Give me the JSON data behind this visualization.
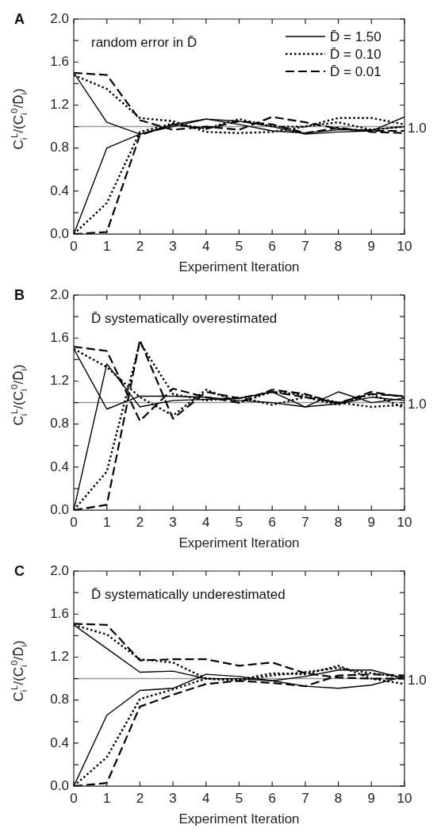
{
  "chart_data": [
    {
      "type": "line",
      "title": "A",
      "xlabel": "Experiment Iteration",
      "ylabel": "C$_{i}$$^{L}$/(C$_{i}$$^{0}$/D̄$_{i}$)",
      "annotations": [
        "random error in D̄"
      ],
      "legend": "top right",
      "marker": "none",
      "x": [
        0,
        1,
        2,
        3,
        4,
        5,
        6,
        7,
        8,
        9,
        10
      ],
      "xlim": [
        0,
        10
      ],
      "xticks": [
        0,
        1,
        2,
        3,
        4,
        5,
        6,
        7,
        8,
        9,
        10
      ],
      "ylim": [
        0,
        2
      ],
      "yticks": [
        {
          "value": 0,
          "label": "0.0"
        },
        {
          "value": 0.2,
          "label": null
        },
        {
          "value": 0.4,
          "label": "0.4"
        },
        {
          "value": 0.6,
          "label": null
        },
        {
          "value": 0.8,
          "label": "0.8"
        },
        {
          "value": 1,
          "label": null
        },
        {
          "value": 1.2,
          "label": "1.2"
        },
        {
          "value": 1.4,
          "label": null
        },
        {
          "value": 1.6,
          "label": "1.6"
        },
        {
          "value": 1.8,
          "label": null
        },
        {
          "value": 2,
          "label": "2.0"
        }
      ],
      "ref_lines": [
        {
          "axis": "y",
          "value": 1,
          "label": "1.0",
          "color": "#999999"
        }
      ],
      "series": [
        {
          "name": "D̄ = 1.50",
          "color": "#000000",
          "line_style": "solid",
          "values": [
            1.5,
            1.04,
            0.93,
            1.0,
            1.07,
            1.05,
            1.0,
            0.93,
            0.95,
            0.96,
            1.09
          ]
        },
        {
          "color": "#000000",
          "line_style": "solid",
          "values": [
            0,
            0.8,
            0.93,
            1.02,
            1.07,
            1.02,
            0.96,
            0.94,
            0.97,
            0.97,
            1.0
          ]
        },
        {
          "name": "D̄ = 0.10",
          "color": "#000000",
          "line_style": "dotted",
          "values": [
            1.48,
            1.35,
            1.08,
            1.05,
            0.95,
            0.94,
            0.95,
            1.0,
            1.08,
            1.08,
            1.02
          ]
        },
        {
          "color": "#000000",
          "line_style": "dotted",
          "values": [
            0,
            0.29,
            0.95,
            1.03,
            0.98,
            1.07,
            1.0,
            1.0,
            1.04,
            0.97,
            1.0
          ]
        },
        {
          "name": "D̄ = 0.01",
          "color": "#000000",
          "line_style": "dashed",
          "values": [
            1.5,
            1.48,
            1.06,
            0.97,
            1.0,
            0.97,
            1.09,
            1.04,
            0.98,
            0.96,
            0.96
          ]
        },
        {
          "color": "#000000",
          "line_style": "dashed",
          "values": [
            0,
            0.02,
            0.92,
            1.02,
            0.98,
            1.05,
            1.02,
            0.94,
            0.99,
            0.95,
            0.94
          ]
        }
      ]
    },
    {
      "type": "line",
      "title": "B",
      "xlabel": "Experiment Iteration",
      "ylabel": "C$_{i}$$^{L}$/(C$_{i}$$^{0}$/D̄$_{i}$)",
      "annotations": [
        "D̄ systematically overestimated"
      ],
      "marker": "none",
      "x": [
        0,
        1,
        2,
        3,
        4,
        5,
        6,
        7,
        8,
        9,
        10
      ],
      "xlim": [
        0,
        10
      ],
      "xticks": [
        0,
        1,
        2,
        3,
        4,
        5,
        6,
        7,
        8,
        9,
        10
      ],
      "ylim": [
        0,
        2
      ],
      "yticks": [
        {
          "value": 0,
          "label": "0.0"
        },
        {
          "value": 0.2,
          "label": null
        },
        {
          "value": 0.4,
          "label": "0.4"
        },
        {
          "value": 0.6,
          "label": null
        },
        {
          "value": 0.8,
          "label": "0.8"
        },
        {
          "value": 1,
          "label": null
        },
        {
          "value": 1.2,
          "label": "1.2"
        },
        {
          "value": 1.4,
          "label": null
        },
        {
          "value": 1.6,
          "label": "1.6"
        },
        {
          "value": 1.8,
          "label": null
        },
        {
          "value": 2,
          "label": "2.0"
        }
      ],
      "ref_lines": [
        {
          "axis": "y",
          "value": 1,
          "label": "1.0",
          "color": "#999999"
        }
      ],
      "series": [
        {
          "color": "#000000",
          "line_style": "solid",
          "values": [
            1.5,
            0.94,
            1.06,
            1.06,
            1.05,
            1.02,
            1.0,
            0.96,
            1.1,
            1.0,
            1.04
          ]
        },
        {
          "color": "#000000",
          "line_style": "solid",
          "values": [
            0,
            1.36,
            0.96,
            1.02,
            1.03,
            1.04,
            1.1,
            0.96,
            0.99,
            1.05,
            1.02
          ]
        },
        {
          "color": "#000000",
          "line_style": "dotted",
          "values": [
            1.5,
            1.33,
            1.05,
            0.88,
            1.12,
            1.0,
            1.1,
            1.07,
            1.0,
            0.96,
            0.98
          ]
        },
        {
          "color": "#000000",
          "line_style": "dotted",
          "values": [
            0,
            0.36,
            1.56,
            1.08,
            1.02,
            1.05,
            0.98,
            1.05,
            0.98,
            1.08,
            0.95
          ]
        },
        {
          "color": "#000000",
          "line_style": "dashed",
          "values": [
            1.52,
            1.48,
            0.83,
            1.13,
            1.05,
            1.0,
            1.12,
            1.08,
            0.99,
            1.1,
            1.05
          ]
        },
        {
          "color": "#000000",
          "line_style": "dashed",
          "values": [
            0,
            0.05,
            1.58,
            0.85,
            1.1,
            1.04,
            1.1,
            1.05,
            1.0,
            1.08,
            1.06
          ]
        }
      ]
    },
    {
      "type": "line",
      "title": "C",
      "xlabel": "Experiment Iteration",
      "ylabel": "C$_{i}$$^{L}$/(C$_{i}$$^{0}$/D̄$_{i}$)",
      "annotations": [
        "D̄ systematically underestimated"
      ],
      "marker": "none",
      "x": [
        0,
        1,
        2,
        3,
        4,
        5,
        6,
        7,
        8,
        9,
        10
      ],
      "xlim": [
        0,
        10
      ],
      "xticks": [
        0,
        1,
        2,
        3,
        4,
        5,
        6,
        7,
        8,
        9,
        10
      ],
      "ylim": [
        0,
        2
      ],
      "yticks": [
        {
          "value": 0,
          "label": "0.0"
        },
        {
          "value": 0.2,
          "label": null
        },
        {
          "value": 0.4,
          "label": "0.4"
        },
        {
          "value": 0.6,
          "label": null
        },
        {
          "value": 0.8,
          "label": "0.8"
        },
        {
          "value": 1,
          "label": null
        },
        {
          "value": 1.2,
          "label": "1.2"
        },
        {
          "value": 1.4,
          "label": null
        },
        {
          "value": 1.6,
          "label": "1.6"
        },
        {
          "value": 1.8,
          "label": null
        },
        {
          "value": 2,
          "label": "2.0"
        }
      ],
      "ref_lines": [
        {
          "axis": "y",
          "value": 1,
          "label": "1.0",
          "color": "#999999"
        }
      ],
      "series": [
        {
          "color": "#000000",
          "line_style": "solid",
          "values": [
            1.5,
            1.28,
            1.06,
            1.07,
            1.0,
            1.0,
            0.98,
            0.93,
            0.91,
            0.94,
            1.02
          ]
        },
        {
          "color": "#000000",
          "line_style": "solid",
          "values": [
            0,
            0.66,
            0.89,
            0.91,
            1.04,
            1.02,
            0.98,
            1.02,
            1.08,
            1.08,
            1.0
          ]
        },
        {
          "color": "#000000",
          "line_style": "dotted",
          "values": [
            1.5,
            1.41,
            1.18,
            1.15,
            1.0,
            0.99,
            1.05,
            1.04,
            1.12,
            1.0,
            0.95
          ]
        },
        {
          "color": "#000000",
          "line_style": "dotted",
          "values": [
            0,
            0.27,
            0.81,
            0.9,
            1.0,
            0.98,
            1.03,
            1.06,
            1.1,
            1.05,
            1.01
          ]
        },
        {
          "color": "#000000",
          "line_style": "dashed",
          "values": [
            1.51,
            1.5,
            1.17,
            1.18,
            1.18,
            1.12,
            1.15,
            1.05,
            1.01,
            1.0,
            1.0
          ]
        },
        {
          "color": "#000000",
          "line_style": "dashed",
          "values": [
            0,
            0.03,
            0.74,
            0.85,
            0.95,
            0.98,
            0.96,
            0.93,
            1.03,
            1.04,
            1.03
          ]
        }
      ]
    }
  ]
}
